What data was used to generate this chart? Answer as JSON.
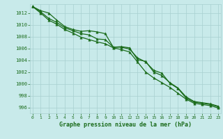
{
  "x": [
    0,
    1,
    2,
    3,
    4,
    5,
    6,
    7,
    8,
    9,
    10,
    11,
    12,
    13,
    14,
    15,
    16,
    17,
    18,
    19,
    20,
    21,
    22,
    23
  ],
  "line1": [
    1013.1,
    1012.4,
    1012.0,
    1010.8,
    1009.7,
    1009.2,
    1008.9,
    1009.0,
    1008.8,
    1008.5,
    1006.2,
    1006.3,
    1006.1,
    1004.1,
    1003.8,
    1002.0,
    1001.4,
    1000.2,
    999.3,
    997.8,
    997.0,
    996.8,
    996.6,
    996.2
  ],
  "line2": [
    1013.1,
    1012.2,
    1011.1,
    1010.4,
    1009.5,
    1009.0,
    1008.5,
    1008.3,
    1007.6,
    1007.5,
    1006.2,
    1006.2,
    1005.9,
    1004.4,
    1003.7,
    1002.3,
    1001.8,
    1000.1,
    999.2,
    997.6,
    996.9,
    996.7,
    996.5,
    996.1
  ],
  "line3": [
    1013.1,
    1012.0,
    1010.8,
    1010.1,
    1009.2,
    1008.6,
    1007.9,
    1007.5,
    1007.1,
    1006.8,
    1006.1,
    1005.8,
    1005.4,
    1003.7,
    1002.0,
    1001.0,
    1000.2,
    999.4,
    998.4,
    997.4,
    996.7,
    996.5,
    996.3,
    995.9
  ],
  "line_color": "#1a6b1a",
  "bg_color": "#c8eaea",
  "grid_color": "#a8d0d0",
  "xlabel": "Graphe pression niveau de la mer (hPa)",
  "xlabel_color": "#1a6b1a",
  "tick_color": "#1a6b1a",
  "ylim": [
    995.0,
    1013.5
  ],
  "xlim": [
    -0.3,
    23.3
  ],
  "yticks": [
    996,
    998,
    1000,
    1002,
    1004,
    1006,
    1008,
    1010,
    1012
  ],
  "xticks": [
    0,
    1,
    2,
    3,
    4,
    5,
    6,
    7,
    8,
    9,
    10,
    11,
    12,
    13,
    14,
    15,
    16,
    17,
    18,
    19,
    20,
    21,
    22,
    23
  ]
}
